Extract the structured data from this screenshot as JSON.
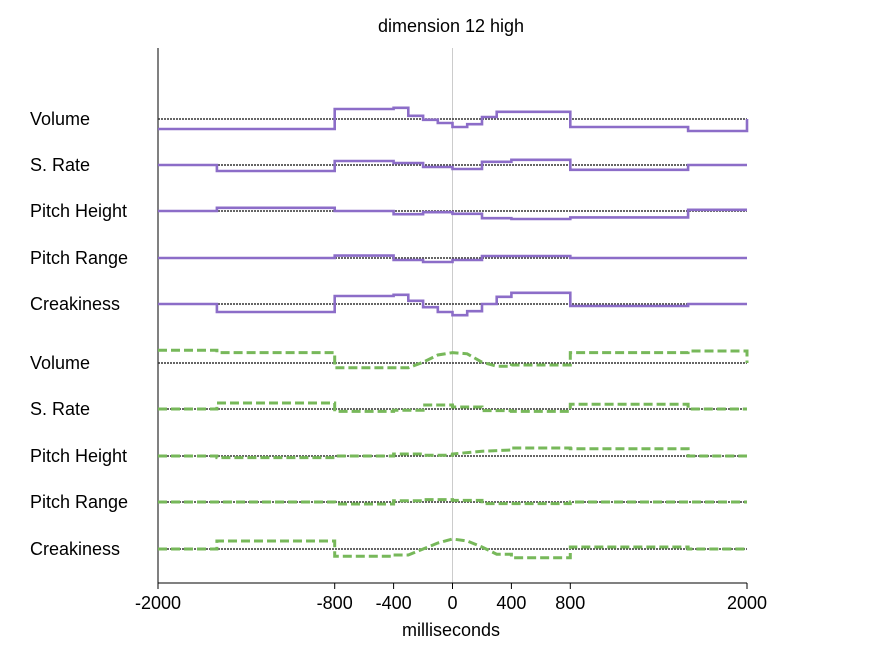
{
  "chart_data": {
    "type": "line",
    "title": "dimension 12 high",
    "xlabel": "milliseconds",
    "ylabel": "",
    "xlim": [
      -2000,
      2000
    ],
    "x_ticks": [
      -2000,
      -800,
      -400,
      0,
      400,
      800,
      2000
    ],
    "x_tick_labels": [
      "-2000",
      "-800",
      "-400",
      "0",
      "400",
      "800",
      "2000"
    ],
    "zero_line": 0,
    "colors": {
      "upper": "#8c6dc8",
      "lower": "#77b85a",
      "baseline": "#333333",
      "zero": "#cccccc"
    },
    "series": [
      {
        "name": "Volume",
        "group": "upper",
        "values": [
          [
            -2000,
            -2.5
          ],
          [
            -1600,
            -2.5
          ],
          [
            -800,
            -2.5
          ],
          [
            -800,
            2.5
          ],
          [
            -400,
            2.5
          ],
          [
            -400,
            2.8
          ],
          [
            -300,
            2.8
          ],
          [
            -300,
            0.8
          ],
          [
            -200,
            0.8
          ],
          [
            -200,
            -0.2
          ],
          [
            -100,
            -0.2
          ],
          [
            -100,
            -1
          ],
          [
            0,
            -1
          ],
          [
            0,
            -2
          ],
          [
            100,
            -2
          ],
          [
            100,
            -1.3
          ],
          [
            200,
            -1.3
          ],
          [
            200,
            0.5
          ],
          [
            300,
            0.5
          ],
          [
            300,
            1.8
          ],
          [
            800,
            1.8
          ],
          [
            800,
            -2
          ],
          [
            1600,
            -2
          ],
          [
            1600,
            -3
          ],
          [
            2000,
            -3
          ],
          [
            2000,
            0
          ]
        ]
      },
      {
        "name": "S. Rate",
        "group": "upper",
        "values": [
          [
            -2000,
            0
          ],
          [
            -1600,
            0
          ],
          [
            -1600,
            -1.5
          ],
          [
            -800,
            -1.5
          ],
          [
            -800,
            1
          ],
          [
            -400,
            1
          ],
          [
            -400,
            0.5
          ],
          [
            -200,
            0.5
          ],
          [
            -200,
            -0.5
          ],
          [
            0,
            -0.5
          ],
          [
            0,
            -1
          ],
          [
            200,
            -1
          ],
          [
            200,
            0.8
          ],
          [
            400,
            0.8
          ],
          [
            400,
            1.3
          ],
          [
            800,
            1.3
          ],
          [
            800,
            -1.2
          ],
          [
            1600,
            -1.2
          ],
          [
            1600,
            0
          ],
          [
            2000,
            0
          ]
        ]
      },
      {
        "name": "Pitch Height",
        "group": "upper",
        "values": [
          [
            -2000,
            0
          ],
          [
            -1600,
            0
          ],
          [
            -1600,
            0.8
          ],
          [
            -800,
            0.8
          ],
          [
            -800,
            0
          ],
          [
            -400,
            0
          ],
          [
            -400,
            -0.8
          ],
          [
            -200,
            -0.8
          ],
          [
            -200,
            -0.3
          ],
          [
            0,
            -0.3
          ],
          [
            0,
            -0.7
          ],
          [
            200,
            -0.7
          ],
          [
            200,
            -1.8
          ],
          [
            400,
            -1.8
          ],
          [
            400,
            -2
          ],
          [
            800,
            -2
          ],
          [
            800,
            -1.6
          ],
          [
            1600,
            -1.6
          ],
          [
            1600,
            0.3
          ],
          [
            2000,
            0.3
          ]
        ]
      },
      {
        "name": "Pitch Range",
        "group": "upper",
        "values": [
          [
            -2000,
            0
          ],
          [
            -800,
            0
          ],
          [
            -800,
            0.6
          ],
          [
            -400,
            0.6
          ],
          [
            -400,
            -0.5
          ],
          [
            -200,
            -0.5
          ],
          [
            -200,
            -1
          ],
          [
            0,
            -1
          ],
          [
            0,
            -0.5
          ],
          [
            200,
            -0.5
          ],
          [
            200,
            0.5
          ],
          [
            800,
            0.5
          ],
          [
            800,
            0
          ],
          [
            2000,
            0
          ]
        ]
      },
      {
        "name": "Creakiness",
        "group": "upper",
        "values": [
          [
            -2000,
            0
          ],
          [
            -1600,
            0
          ],
          [
            -1600,
            -2
          ],
          [
            -800,
            -2
          ],
          [
            -800,
            2
          ],
          [
            -400,
            2
          ],
          [
            -400,
            2.3
          ],
          [
            -300,
            2.3
          ],
          [
            -300,
            0.8
          ],
          [
            -200,
            0.8
          ],
          [
            -200,
            -0.8
          ],
          [
            -100,
            -0.8
          ],
          [
            -100,
            -2
          ],
          [
            0,
            -2
          ],
          [
            0,
            -2.8
          ],
          [
            100,
            -2.8
          ],
          [
            100,
            -1.8
          ],
          [
            200,
            -1.8
          ],
          [
            200,
            0
          ],
          [
            300,
            0
          ],
          [
            300,
            1.8
          ],
          [
            400,
            1.8
          ],
          [
            400,
            2.8
          ],
          [
            800,
            2.8
          ],
          [
            800,
            -0.5
          ],
          [
            1600,
            -0.5
          ],
          [
            1600,
            0
          ],
          [
            2000,
            0
          ]
        ]
      },
      {
        "name": "Volume",
        "group": "lower",
        "values": [
          [
            -2000,
            3.2
          ],
          [
            -1600,
            3.2
          ],
          [
            -1600,
            2.6
          ],
          [
            -800,
            2.6
          ],
          [
            -800,
            -1.2
          ],
          [
            -400,
            -1.2
          ],
          [
            -400,
            -1.2
          ],
          [
            -300,
            -1.2
          ],
          [
            -200,
            0.2
          ],
          [
            -100,
            2
          ],
          [
            0,
            2.6
          ],
          [
            100,
            2.3
          ],
          [
            200,
            0.2
          ],
          [
            300,
            -0.8
          ],
          [
            400,
            -0.8
          ],
          [
            400,
            -0.5
          ],
          [
            800,
            -0.5
          ],
          [
            800,
            2.6
          ],
          [
            1600,
            2.6
          ],
          [
            1600,
            3
          ],
          [
            2000,
            3
          ],
          [
            2000,
            0
          ]
        ]
      },
      {
        "name": "S. Rate",
        "group": "lower",
        "values": [
          [
            -2000,
            0
          ],
          [
            -1600,
            0
          ],
          [
            -1600,
            1.5
          ],
          [
            -800,
            1.5
          ],
          [
            -800,
            -0.6
          ],
          [
            -400,
            -0.6
          ],
          [
            -400,
            -0.3
          ],
          [
            -200,
            -0.3
          ],
          [
            -200,
            1
          ],
          [
            0,
            1
          ],
          [
            0,
            0.5
          ],
          [
            200,
            0.5
          ],
          [
            200,
            -0.4
          ],
          [
            400,
            -0.4
          ],
          [
            400,
            -0.6
          ],
          [
            800,
            -0.6
          ],
          [
            800,
            1.2
          ],
          [
            1600,
            1.2
          ],
          [
            1600,
            0
          ],
          [
            2000,
            0
          ]
        ]
      },
      {
        "name": "Pitch Height",
        "group": "lower",
        "values": [
          [
            -2000,
            0
          ],
          [
            -1600,
            0
          ],
          [
            -1600,
            -0.4
          ],
          [
            -800,
            -0.4
          ],
          [
            -800,
            0
          ],
          [
            -400,
            0
          ],
          [
            -400,
            0.5
          ],
          [
            -200,
            0.5
          ],
          [
            -200,
            0.2
          ],
          [
            0,
            0.2
          ],
          [
            0,
            0.5
          ],
          [
            200,
            1.2
          ],
          [
            400,
            1.5
          ],
          [
            400,
            2
          ],
          [
            800,
            2
          ],
          [
            800,
            1.8
          ],
          [
            1600,
            1.8
          ],
          [
            1600,
            0
          ],
          [
            2000,
            0
          ]
        ]
      },
      {
        "name": "Pitch Range",
        "group": "lower",
        "values": [
          [
            -2000,
            0
          ],
          [
            -800,
            0
          ],
          [
            -800,
            -0.5
          ],
          [
            -400,
            -0.5
          ],
          [
            -400,
            0.3
          ],
          [
            -200,
            0.3
          ],
          [
            -200,
            0.6
          ],
          [
            0,
            0.6
          ],
          [
            0,
            0.4
          ],
          [
            200,
            0.4
          ],
          [
            200,
            -0.4
          ],
          [
            800,
            -0.4
          ],
          [
            800,
            0
          ],
          [
            2000,
            0
          ]
        ]
      },
      {
        "name": "Creakiness",
        "group": "lower",
        "values": [
          [
            -2000,
            0
          ],
          [
            -1600,
            0
          ],
          [
            -1600,
            2
          ],
          [
            -800,
            2
          ],
          [
            -800,
            -1.8
          ],
          [
            -400,
            -1.8
          ],
          [
            -400,
            -1.5
          ],
          [
            -300,
            -1.5
          ],
          [
            -200,
            0
          ],
          [
            -100,
            1.5
          ],
          [
            0,
            2.5
          ],
          [
            100,
            2
          ],
          [
            200,
            0.5
          ],
          [
            300,
            -1.3
          ],
          [
            400,
            -1.3
          ],
          [
            400,
            -2.2
          ],
          [
            800,
            -2.2
          ],
          [
            800,
            0.5
          ],
          [
            1600,
            0.5
          ],
          [
            1600,
            0
          ],
          [
            2000,
            0
          ]
        ]
      }
    ]
  }
}
